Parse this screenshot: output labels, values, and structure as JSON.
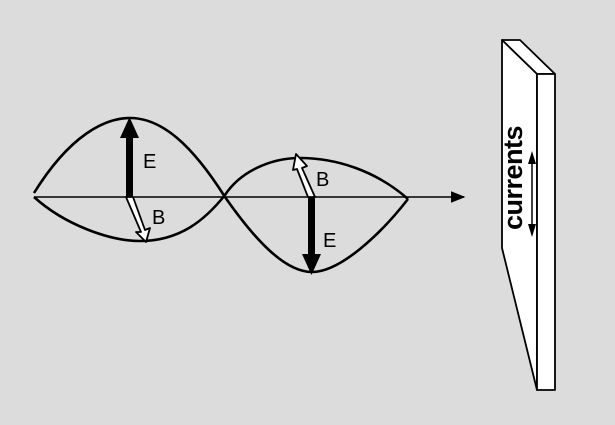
{
  "diagram": {
    "background_color": "#dcdcdc",
    "labels": {
      "e_field_1": "E",
      "b_field_1": "B",
      "b_field_2": "B",
      "e_field_2": "E",
      "currents": "currents"
    }
  }
}
